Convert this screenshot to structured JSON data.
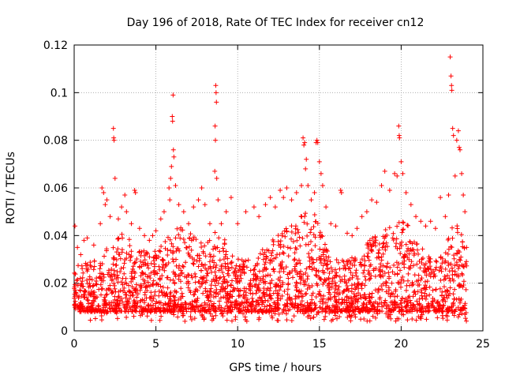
{
  "chart_data": {
    "type": "scatter",
    "title": "Day 196 of 2018, Rate Of TEC Index for receiver cn12",
    "xlabel": "GPS time / hours",
    "ylabel": "ROTI / TECUs",
    "xlim": [
      0,
      25
    ],
    "ylim": [
      0,
      0.12
    ],
    "xticks": [
      0,
      5,
      10,
      15,
      20,
      25
    ],
    "yticks": [
      0,
      0.02,
      0.04,
      0.06,
      0.08,
      0.1,
      0.12
    ],
    "xtick_labels": [
      "0",
      "5",
      "10",
      "15",
      "20",
      "25"
    ],
    "ytick_labels": [
      "0",
      "0.02",
      "0.04",
      "0.06",
      "0.08",
      "0.1",
      "0.12"
    ],
    "grid": true,
    "marker": "+",
    "marker_color": "#ff0000",
    "series": [
      {
        "name": "ROTI",
        "points": [
          [
            0.05,
            0.044
          ],
          [
            0.2,
            0.035
          ],
          [
            0.4,
            0.032
          ],
          [
            0.6,
            0.038
          ],
          [
            0.8,
            0.039
          ],
          [
            1.2,
            0.036
          ],
          [
            1.6,
            0.045
          ],
          [
            1.7,
            0.06
          ],
          [
            1.8,
            0.058
          ],
          [
            1.9,
            0.053
          ],
          [
            2.0,
            0.055
          ],
          [
            2.2,
            0.048
          ],
          [
            2.4,
            0.085
          ],
          [
            2.42,
            0.081
          ],
          [
            2.44,
            0.08
          ],
          [
            2.5,
            0.064
          ],
          [
            2.7,
            0.047
          ],
          [
            2.9,
            0.052
          ],
          [
            3.1,
            0.057
          ],
          [
            3.2,
            0.05
          ],
          [
            3.5,
            0.045
          ],
          [
            3.7,
            0.059
          ],
          [
            3.75,
            0.058
          ],
          [
            4.0,
            0.043
          ],
          [
            4.3,
            0.04
          ],
          [
            4.6,
            0.038
          ],
          [
            4.8,
            0.04
          ],
          [
            5.0,
            0.042
          ],
          [
            5.3,
            0.047
          ],
          [
            5.5,
            0.05
          ],
          [
            5.8,
            0.06
          ],
          [
            5.85,
            0.055
          ],
          [
            5.9,
            0.064
          ],
          [
            5.95,
            0.069
          ],
          [
            6.0,
            0.09
          ],
          [
            6.02,
            0.088
          ],
          [
            6.05,
            0.099
          ],
          [
            6.07,
            0.076
          ],
          [
            6.1,
            0.073
          ],
          [
            6.2,
            0.061
          ],
          [
            6.4,
            0.053
          ],
          [
            6.7,
            0.05
          ],
          [
            7.0,
            0.045
          ],
          [
            7.3,
            0.052
          ],
          [
            7.6,
            0.055
          ],
          [
            7.8,
            0.06
          ],
          [
            8.0,
            0.053
          ],
          [
            8.3,
            0.045
          ],
          [
            8.6,
            0.067
          ],
          [
            8.62,
            0.086
          ],
          [
            8.64,
            0.08
          ],
          [
            8.66,
            0.103
          ],
          [
            8.68,
            0.1
          ],
          [
            8.7,
            0.096
          ],
          [
            8.72,
            0.064
          ],
          [
            8.8,
            0.055
          ],
          [
            9.0,
            0.045
          ],
          [
            9.3,
            0.05
          ],
          [
            9.6,
            0.056
          ],
          [
            10.0,
            0.045
          ],
          [
            10.5,
            0.05
          ],
          [
            11.0,
            0.052
          ],
          [
            11.3,
            0.048
          ],
          [
            11.7,
            0.053
          ],
          [
            12.0,
            0.056
          ],
          [
            12.3,
            0.052
          ],
          [
            12.6,
            0.059
          ],
          [
            12.8,
            0.056
          ],
          [
            13.0,
            0.06
          ],
          [
            13.3,
            0.055
          ],
          [
            13.6,
            0.058
          ],
          [
            13.9,
            0.061
          ],
          [
            14.0,
            0.081
          ],
          [
            14.05,
            0.078
          ],
          [
            14.1,
            0.079
          ],
          [
            14.15,
            0.068
          ],
          [
            14.2,
            0.072
          ],
          [
            14.3,
            0.061
          ],
          [
            14.5,
            0.055
          ],
          [
            14.7,
            0.058
          ],
          [
            14.8,
            0.079
          ],
          [
            14.85,
            0.08
          ],
          [
            14.9,
            0.079
          ],
          [
            15.0,
            0.071
          ],
          [
            15.1,
            0.066
          ],
          [
            15.2,
            0.061
          ],
          [
            15.4,
            0.052
          ],
          [
            15.7,
            0.045
          ],
          [
            16.0,
            0.044
          ],
          [
            16.3,
            0.059
          ],
          [
            16.35,
            0.058
          ],
          [
            16.7,
            0.041
          ],
          [
            17.0,
            0.04
          ],
          [
            17.3,
            0.043
          ],
          [
            17.6,
            0.048
          ],
          [
            17.9,
            0.05
          ],
          [
            18.2,
            0.055
          ],
          [
            18.5,
            0.054
          ],
          [
            18.8,
            0.061
          ],
          [
            19.0,
            0.067
          ],
          [
            19.3,
            0.059
          ],
          [
            19.6,
            0.066
          ],
          [
            19.75,
            0.065
          ],
          [
            19.85,
            0.086
          ],
          [
            19.88,
            0.082
          ],
          [
            19.9,
            0.081
          ],
          [
            20.0,
            0.071
          ],
          [
            20.1,
            0.066
          ],
          [
            20.3,
            0.058
          ],
          [
            20.6,
            0.053
          ],
          [
            20.9,
            0.048
          ],
          [
            21.2,
            0.046
          ],
          [
            21.5,
            0.044
          ],
          [
            21.8,
            0.046
          ],
          [
            22.1,
            0.043
          ],
          [
            22.4,
            0.056
          ],
          [
            22.7,
            0.048
          ],
          [
            22.9,
            0.057
          ],
          [
            23.0,
            0.115
          ],
          [
            23.05,
            0.107
          ],
          [
            23.08,
            0.103
          ],
          [
            23.1,
            0.101
          ],
          [
            23.15,
            0.085
          ],
          [
            23.2,
            0.082
          ],
          [
            23.3,
            0.065
          ],
          [
            23.4,
            0.08
          ],
          [
            23.5,
            0.084
          ],
          [
            23.55,
            0.077
          ],
          [
            23.6,
            0.076
          ],
          [
            23.7,
            0.066
          ],
          [
            23.8,
            0.057
          ],
          [
            23.9,
            0.05
          ],
          [
            24.0,
            0.035
          ]
        ]
      }
    ]
  }
}
